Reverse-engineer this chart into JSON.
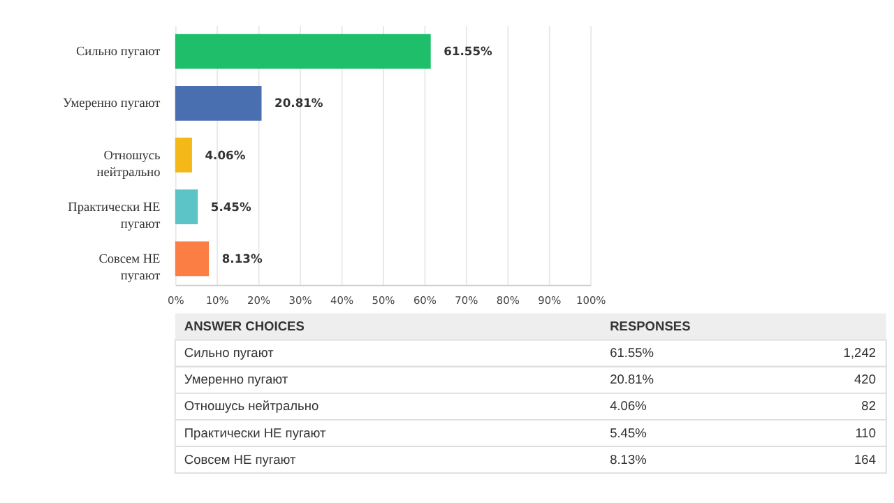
{
  "chart_data": [
    {
      "type": "bar",
      "orientation": "horizontal",
      "categories": [
        "Сильно пугают",
        "Умеренно пугают",
        "Отношусь нейтрально",
        "Практически НЕ пугают",
        "Совсем НЕ пугают"
      ],
      "values": [
        61.55,
        20.81,
        4.06,
        5.45,
        8.13
      ],
      "value_labels": [
        "61.55%",
        "20.81%",
        "4.06%",
        "5.45%",
        "8.13%"
      ],
      "colors": [
        "#1fbe6b",
        "#4a6fb0",
        "#f5b819",
        "#5cc3c6",
        "#fb7e45"
      ],
      "xlim": [
        0,
        100
      ],
      "xticks": [
        {
          "value": 0,
          "label": "0%"
        },
        {
          "value": 10,
          "label": "10%"
        },
        {
          "value": 20,
          "label": "20%"
        },
        {
          "value": 30,
          "label": "30%"
        },
        {
          "value": 40,
          "label": "40%"
        },
        {
          "value": 50,
          "label": "50%"
        },
        {
          "value": 60,
          "label": "60%"
        },
        {
          "value": 70,
          "label": "70%"
        },
        {
          "value": 80,
          "label": "80%"
        },
        {
          "value": 90,
          "label": "90%"
        },
        {
          "value": 100,
          "label": "100%"
        }
      ],
      "grid": "x",
      "legend": false
    },
    {
      "type": "other",
      "categories": [
        "Сильно пугают",
        "Умеренно пугают",
        "Отношусь нейтрально",
        "Практически НЕ пугают",
        "Совсем НЕ пугают"
      ],
      "series": [
        {
          "values": [
            61.55,
            20.81,
            4.06,
            5.45,
            8.13
          ],
          "value_labels": [
            "61.55%",
            "20.81%",
            "4.06%",
            "5.45%",
            "8.13%"
          ]
        },
        {
          "values": [
            1242,
            420,
            82,
            110,
            164
          ],
          "value_labels": [
            "1,242",
            "420",
            "82",
            "110",
            "164"
          ]
        }
      ],
      "annotations": [
        "ANSWER CHOICES",
        "RESPONSES"
      ]
    }
  ]
}
